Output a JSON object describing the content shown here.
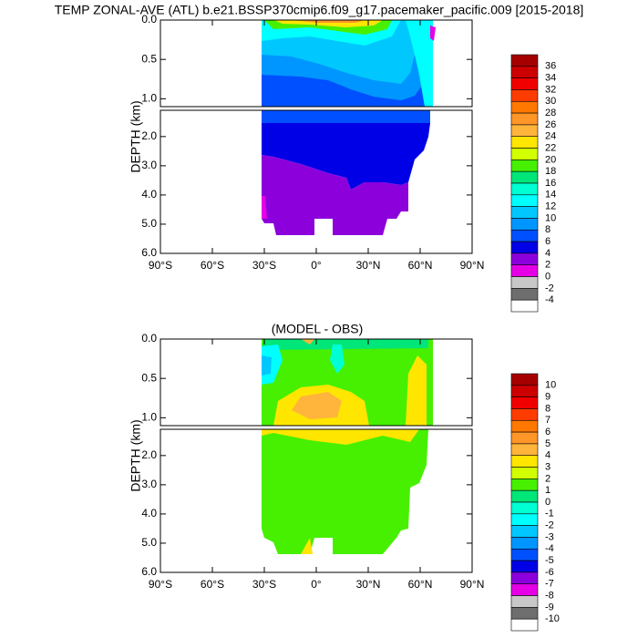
{
  "chart_data": [
    {
      "type": "contour",
      "title": "TEMP ZONAL-AVE (ATL) b.e21.BSSP370cmip6.f09_g17.pacemaker_pacific.009 [2015-2018]",
      "ylabel": "DEPTH (km)",
      "xlim": [
        -90,
        90
      ],
      "xticks": [
        {
          "value": -90,
          "label": "90°S"
        },
        {
          "value": -60,
          "label": "60°S"
        },
        {
          "value": -30,
          "label": "30°S"
        },
        {
          "value": 0,
          "label": "0°"
        },
        {
          "value": 30,
          "label": "30°N"
        },
        {
          "value": 60,
          "label": "60°N"
        },
        {
          "value": 90,
          "label": "90°N"
        }
      ],
      "ylim": [
        0,
        6
      ],
      "ybreak": 1.1,
      "yticks": [
        {
          "value": 0,
          "label": "0.0"
        },
        {
          "value": 0.5,
          "label": "0.5"
        },
        {
          "value": 1,
          "label": "1.0"
        },
        {
          "value": 2,
          "label": "2.0"
        },
        {
          "value": 3,
          "label": "3.0"
        },
        {
          "value": 4,
          "label": "4.0"
        },
        {
          "value": 5,
          "label": "5.0"
        },
        {
          "value": 6,
          "label": "6.0"
        }
      ],
      "levels": [
        36,
        34,
        32,
        30,
        28,
        26,
        24,
        22,
        20,
        18,
        16,
        14,
        12,
        10,
        8,
        6,
        4,
        2,
        0,
        -2,
        -4
      ],
      "colors": [
        "#a50000",
        "#cd0000",
        "#f00000",
        "#ff3c00",
        "#ff7800",
        "#ff9628",
        "#ffb43c",
        "#ffe600",
        "#d2ff00",
        "#46f000",
        "#00e678",
        "#00ffd2",
        "#00ffff",
        "#00c8ff",
        "#0096ff",
        "#0050ff",
        "#0000e6",
        "#8c00dc",
        "#e600e6",
        "#c8c8c8",
        "#6e6e6e",
        "#ffffff"
      ]
    },
    {
      "type": "contour",
      "title": "(MODEL - OBS)",
      "ylabel": "DEPTH (km)",
      "xlim": [
        -90,
        90
      ],
      "xticks": [
        {
          "value": -90,
          "label": "90°S"
        },
        {
          "value": -60,
          "label": "60°S"
        },
        {
          "value": -30,
          "label": "30°S"
        },
        {
          "value": 0,
          "label": "0°"
        },
        {
          "value": 30,
          "label": "30°N"
        },
        {
          "value": 60,
          "label": "60°N"
        },
        {
          "value": 90,
          "label": "90°N"
        }
      ],
      "ylim": [
        0,
        6
      ],
      "ybreak": 1.1,
      "yticks": [
        {
          "value": 0,
          "label": "0.0"
        },
        {
          "value": 0.5,
          "label": "0.5"
        },
        {
          "value": 1,
          "label": "1.0"
        },
        {
          "value": 2,
          "label": "2.0"
        },
        {
          "value": 3,
          "label": "3.0"
        },
        {
          "value": 4,
          "label": "4.0"
        },
        {
          "value": 5,
          "label": "5.0"
        },
        {
          "value": 6,
          "label": "6.0"
        }
      ],
      "levels": [
        10,
        9,
        8,
        7,
        6,
        5,
        4,
        3,
        2,
        1,
        0,
        -1,
        -2,
        -3,
        -4,
        -5,
        -6,
        -7,
        -8,
        -9,
        -10
      ],
      "colors": [
        "#a50000",
        "#cd0000",
        "#f00000",
        "#ff3c00",
        "#ff7800",
        "#ff9628",
        "#ffb43c",
        "#ffe600",
        "#d2ff00",
        "#46f000",
        "#00e678",
        "#00ffd2",
        "#00ffff",
        "#00c8ff",
        "#0096ff",
        "#0050ff",
        "#0000e6",
        "#8c00dc",
        "#e600e6",
        "#c8c8c8",
        "#6e6e6e",
        "#ffffff"
      ]
    }
  ]
}
